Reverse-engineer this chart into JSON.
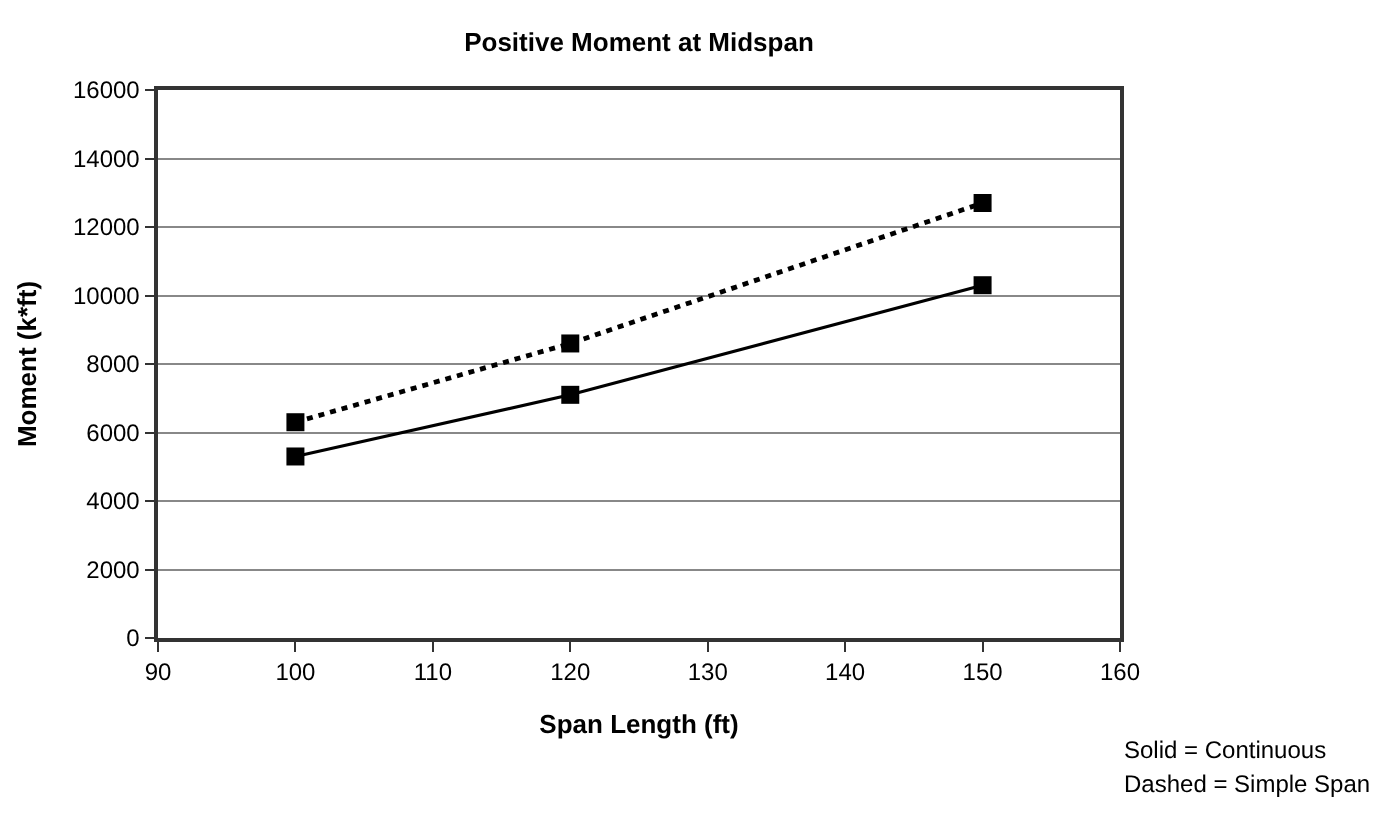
{
  "chart_data": {
    "type": "line",
    "title": "Positive Moment at Midspan",
    "xlabel": "Span Length (ft)",
    "ylabel": "Moment (k*ft)",
    "x": [
      100,
      120,
      150
    ],
    "series": [
      {
        "color": "#000000",
        "values": [
          5300,
          7100,
          10300
        ],
        "line_style": "solid"
      },
      {
        "color": "#000000",
        "values": [
          6300,
          8600,
          12700
        ],
        "line_style": "dotted"
      }
    ],
    "xlim": [
      90,
      160
    ],
    "xticks": [
      90,
      100,
      110,
      120,
      130,
      140,
      150,
      160
    ],
    "ylim": [
      0,
      16000
    ],
    "yticks": [
      0,
      2000,
      4000,
      6000,
      8000,
      10000,
      12000,
      14000,
      16000
    ],
    "grid": "y",
    "marker": "square",
    "annotations": [
      "Solid = Continuous",
      "Dashed = Simple Span"
    ]
  }
}
